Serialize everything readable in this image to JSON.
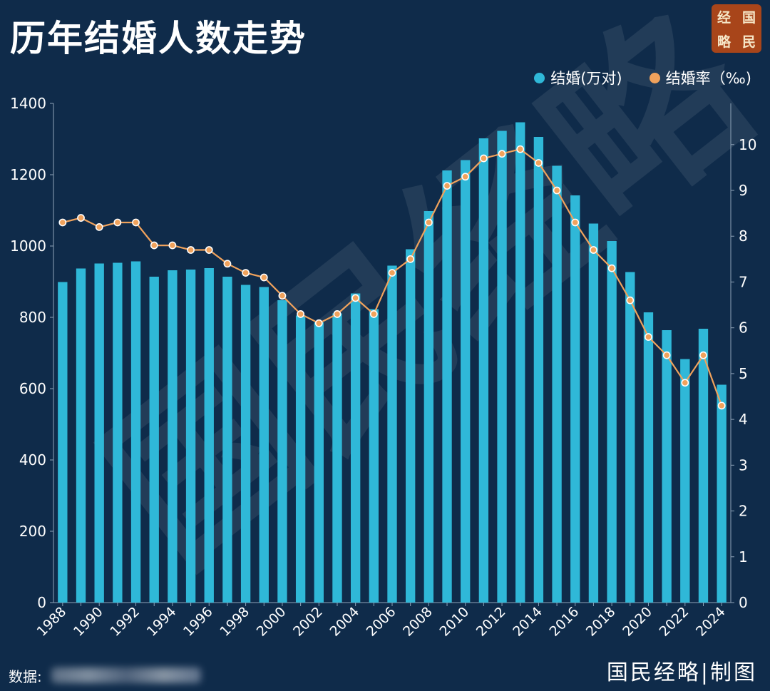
{
  "title": "历年结婚人数走势",
  "logo": {
    "chars": [
      "经",
      "国",
      "略",
      "民"
    ]
  },
  "legend": {
    "series1": {
      "label": "结婚(万对)",
      "color": "#2fb8d8"
    },
    "series2": {
      "label": "结婚率（‰)",
      "color": "#f0a25c"
    }
  },
  "source_label": "数据:",
  "footer": "国民经略|制图",
  "watermark": "国民经略",
  "chart_data": {
    "type": "bar",
    "categories": [
      "1988",
      "1989",
      "1990",
      "1991",
      "1992",
      "1993",
      "1994",
      "1995",
      "1996",
      "1997",
      "1998",
      "1999",
      "2000",
      "2001",
      "2002",
      "2003",
      "2004",
      "2005",
      "2006",
      "2007",
      "2008",
      "2009",
      "2010",
      "2011",
      "2012",
      "2013",
      "2014",
      "2015",
      "2016",
      "2017",
      "2018",
      "2019",
      "2020",
      "2021",
      "2022",
      "2023",
      "2024"
    ],
    "x_tick_labels": [
      "1988",
      "1990",
      "1992",
      "1994",
      "1996",
      "1998",
      "2000",
      "2002",
      "2004",
      "2006",
      "2008",
      "2010",
      "2012",
      "2014",
      "2016",
      "2018",
      "2020",
      "2022",
      "2024"
    ],
    "series": [
      {
        "name": "结婚(万对)",
        "type": "bar",
        "axis": "left",
        "values": [
          899,
          937,
          951,
          953,
          957,
          914,
          932,
          934,
          938,
          914,
          891,
          885,
          848,
          805,
          786,
          811,
          867,
          823,
          945,
          991,
          1098,
          1212,
          1241,
          1302,
          1323,
          1347,
          1306,
          1225,
          1142,
          1063,
          1014,
          927,
          814,
          764,
          683,
          768,
          611
        ]
      },
      {
        "name": "结婚率（‰)",
        "type": "line",
        "axis": "right",
        "values": [
          8.3,
          8.4,
          8.2,
          8.3,
          8.3,
          7.8,
          7.8,
          7.7,
          7.7,
          7.4,
          7.2,
          7.1,
          6.7,
          6.3,
          6.1,
          6.3,
          6.65,
          6.3,
          7.2,
          7.5,
          8.3,
          9.1,
          9.3,
          9.7,
          9.8,
          9.9,
          9.6,
          9.0,
          8.3,
          7.7,
          7.3,
          6.6,
          5.8,
          5.4,
          4.8,
          5.4,
          4.3
        ]
      }
    ],
    "y_left": {
      "min": 0,
      "max": 1400,
      "ticks": [
        0,
        200,
        400,
        600,
        800,
        1000,
        1200,
        1400
      ]
    },
    "y_right": {
      "min": 0,
      "max": 10.9,
      "ticks": [
        0,
        1,
        2,
        3,
        4,
        5,
        6,
        7,
        8,
        9,
        10
      ]
    }
  }
}
